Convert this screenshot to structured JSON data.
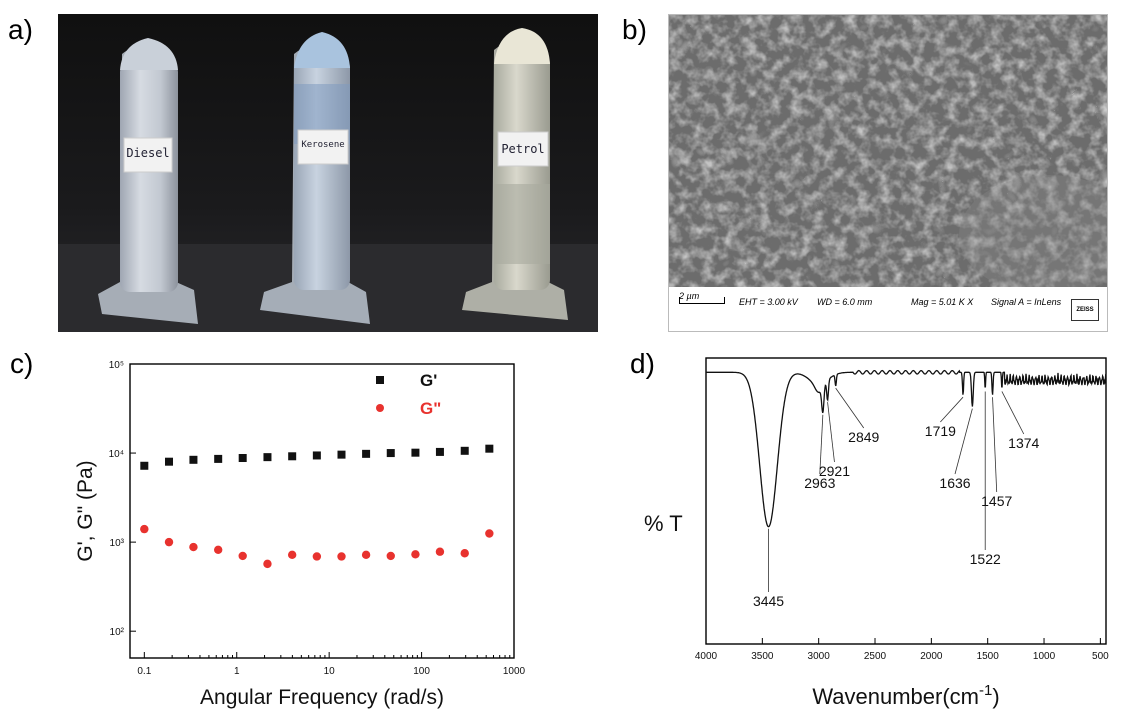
{
  "panels": {
    "a": {
      "label": "a)",
      "tubes": [
        "Diesel",
        "Kerosene",
        "Petrol"
      ]
    },
    "b": {
      "label": "b)",
      "scale_bar": "2 µm",
      "eht": "EHT = 3.00 kV",
      "wd": "WD = 6.0 mm",
      "mag": "Mag =  5.01 K X",
      "signal": "Signal A = InLens",
      "logo": "ZEISS"
    },
    "c": {
      "label": "c)"
    },
    "d": {
      "label": "d)"
    }
  },
  "colors": {
    "g_prime": "#111111",
    "g_double_prime": "#e8322e"
  },
  "chart_data": [
    {
      "type": "scatter",
      "panel": "c",
      "xlabel": "Angular Frequency (rad/s)",
      "ylabel": "G', G\" (Pa)",
      "x_scale": "log",
      "y_scale": "log",
      "xlim": [
        0.07,
        1000
      ],
      "ylim": [
        50,
        100000
      ],
      "x_ticks": [
        0.1,
        1,
        10,
        100,
        1000
      ],
      "x_tick_labels": [
        "0.1",
        "1",
        "10",
        "100",
        "1000"
      ],
      "y_ticks": [
        100,
        1000,
        10000,
        100000
      ],
      "y_tick_labels": [
        "10²",
        "10³",
        "10⁴",
        "10⁵"
      ],
      "legend_position": "top-right",
      "series": [
        {
          "name": "G'",
          "marker": "square",
          "color": "#111111",
          "x": [
            0.1,
            0.185,
            0.34,
            0.63,
            1.16,
            2.15,
            3.98,
            7.36,
            13.6,
            25.1,
            46.4,
            85.8,
            158,
            293,
            541
          ],
          "y": [
            7200,
            8000,
            8400,
            8600,
            8800,
            9000,
            9200,
            9400,
            9600,
            9800,
            10000,
            10100,
            10300,
            10600,
            11200
          ]
        },
        {
          "name": "G\"",
          "marker": "circle",
          "color": "#e8322e",
          "x": [
            0.1,
            0.185,
            0.34,
            0.63,
            1.16,
            2.15,
            3.98,
            7.36,
            13.6,
            25.1,
            46.4,
            85.8,
            158,
            293,
            541
          ],
          "y": [
            1400,
            1000,
            880,
            820,
            700,
            570,
            720,
            690,
            690,
            720,
            700,
            730,
            780,
            750,
            1250
          ]
        }
      ]
    },
    {
      "type": "line",
      "panel": "d",
      "xlabel": "Wavenumber(cm",
      "xlabel_superscript": "-1",
      "xlabel_suffix": ")",
      "ylabel": "% T",
      "xlim": [
        4000,
        450
      ],
      "x_reversed": true,
      "x_ticks": [
        4000,
        3500,
        3000,
        2500,
        2000,
        1500,
        1000,
        500
      ],
      "x_tick_labels": [
        "4000",
        "3500",
        "3000",
        "2500",
        "2000",
        "1500",
        "1000",
        "500"
      ],
      "peaks": [
        {
          "label": "3445",
          "x": 3445
        },
        {
          "label": "2963",
          "x": 2963
        },
        {
          "label": "2921",
          "x": 2921
        },
        {
          "label": "2849",
          "x": 2849
        },
        {
          "label": "1719",
          "x": 1719
        },
        {
          "label": "1636",
          "x": 1636
        },
        {
          "label": "1522",
          "x": 1522
        },
        {
          "label": "1457",
          "x": 1457
        },
        {
          "label": "1374",
          "x": 1374
        }
      ]
    }
  ]
}
